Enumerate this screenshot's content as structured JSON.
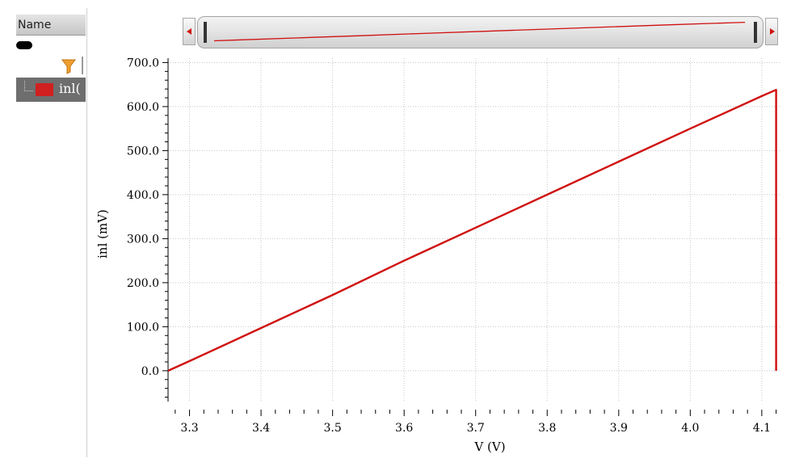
{
  "legend_panel": {
    "header": "Name",
    "items": [
      {
        "label": "inl(",
        "color": "#d02020"
      }
    ]
  },
  "chart_data": {
    "type": "line",
    "xlabel": "V (V)",
    "ylabel": "inl (mV)",
    "xlim": [
      3.27,
      4.125
    ],
    "ylim": [
      -70,
      710
    ],
    "x_ticks": [
      3.3,
      3.4,
      3.5,
      3.6,
      3.7,
      3.8,
      3.9,
      4.0,
      4.1
    ],
    "x_tick_labels": [
      "3.3",
      "3.4",
      "3.5",
      "3.6",
      "3.7",
      "3.8",
      "3.9",
      "4.0",
      "4.1"
    ],
    "y_ticks": [
      0,
      100,
      200,
      300,
      400,
      500,
      600,
      700
    ],
    "y_tick_labels": [
      "0.0",
      "100.0",
      "200.0",
      "300.0",
      "400.0",
      "500.0",
      "600.0",
      "700.0"
    ],
    "grid": true,
    "series": [
      {
        "name": "inl(",
        "color": "#d01010",
        "x": [
          3.27,
          3.3,
          3.4,
          3.5,
          3.6,
          3.7,
          3.8,
          3.9,
          4.0,
          4.1,
          4.12,
          4.12
        ],
        "y": [
          0,
          22,
          97,
          172,
          250,
          325,
          400,
          475,
          550,
          624,
          638,
          0
        ]
      }
    ]
  }
}
